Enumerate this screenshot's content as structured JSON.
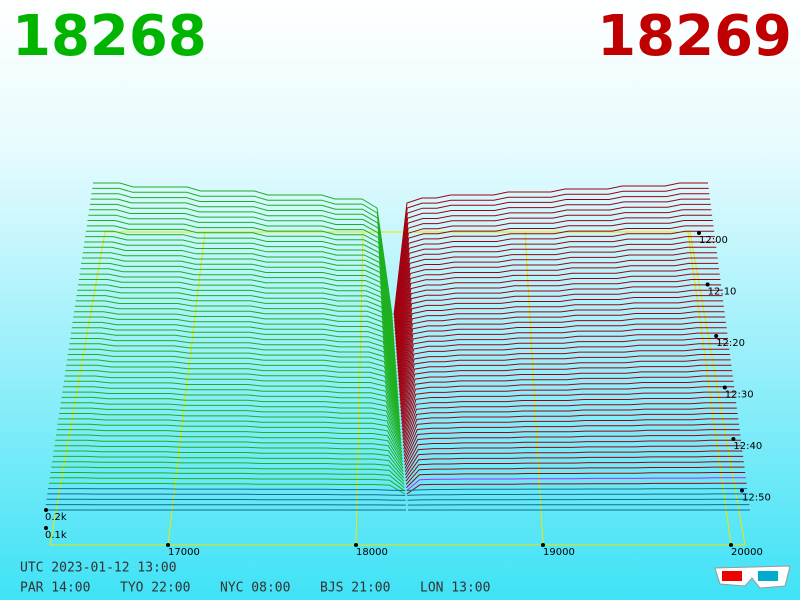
{
  "header": {
    "bid": "18268",
    "ask": "18269"
  },
  "price_axis": [
    "17000",
    "18000",
    "19000",
    "20000"
  ],
  "depth_axis": [
    "0.1k",
    "0.2k"
  ],
  "time_axis": [
    "12:00",
    "12:10",
    "12:20",
    "12:30",
    "12:40",
    "12:50"
  ],
  "footer": {
    "utc": "UTC 2023-01-12 13:00",
    "clocks": [
      "PAR 14:00",
      "TYO 22:00",
      "NYC 08:00",
      "BJS 21:00",
      "LON 13:00"
    ]
  }
}
